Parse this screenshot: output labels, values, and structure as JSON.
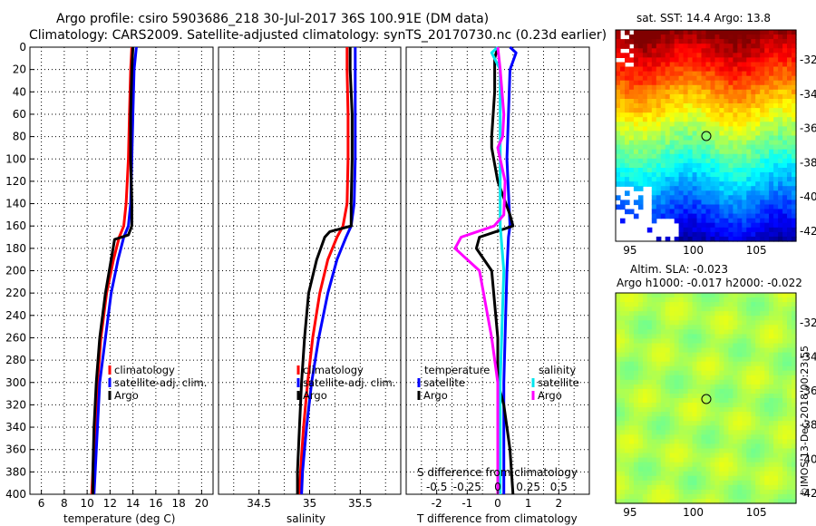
{
  "header": {
    "line1": "Argo profile: csiro 5903686_218 30-Jul-2017 36S 100.91E (DM data)",
    "line2": "Climatology: CARS2009. Satellite-adjusted climatology: synTS_20170730.nc (0.23d earlier)"
  },
  "colors": {
    "climatology": "#ff0000",
    "satellite": "#0000ff",
    "argo": "#000000",
    "sat_salinity": "#00e5ee",
    "argo_salinity": "#ff00ff"
  },
  "chart_data": [
    {
      "type": "line",
      "id": "temperature",
      "xlabel": "temperature (deg C)",
      "ylabel": "depth",
      "xlim": [
        5,
        21
      ],
      "ylim": [
        400,
        0
      ],
      "xticks": [
        "6",
        "8",
        "10",
        "12",
        "14",
        "16",
        "18",
        "20"
      ],
      "yticks": [
        "0",
        "20",
        "40",
        "60",
        "80",
        "100",
        "120",
        "140",
        "160",
        "180",
        "200",
        "220",
        "240",
        "260",
        "280",
        "300",
        "320",
        "340",
        "360",
        "380",
        "400"
      ],
      "legend": [
        "climatology",
        "satellite-adj. clim.",
        "Argo"
      ],
      "series": [
        {
          "name": "climatology",
          "depth": [
            0,
            20,
            60,
            100,
            140,
            160,
            170,
            190,
            220,
            260,
            300,
            340,
            380,
            400
          ],
          "values": [
            13.9,
            13.8,
            13.7,
            13.6,
            13.4,
            13.2,
            12.8,
            12.3,
            11.7,
            11.2,
            10.9,
            10.7,
            10.5,
            10.4
          ]
        },
        {
          "name": "satellite-adj. clim.",
          "depth": [
            0,
            20,
            60,
            100,
            140,
            160,
            170,
            190,
            220,
            260,
            300,
            340,
            380,
            400
          ],
          "values": [
            14.3,
            14.1,
            14.0,
            13.9,
            13.8,
            13.6,
            13.2,
            12.7,
            12.1,
            11.6,
            11.1,
            10.9,
            10.7,
            10.6
          ]
        },
        {
          "name": "Argo",
          "depth": [
            0,
            20,
            60,
            100,
            140,
            160,
            168,
            172,
            190,
            220,
            260,
            300,
            340,
            380,
            400
          ],
          "values": [
            14.0,
            13.9,
            13.8,
            13.8,
            13.9,
            13.9,
            13.6,
            12.4,
            12.1,
            11.6,
            11.1,
            10.8,
            10.6,
            10.5,
            10.5
          ]
        }
      ]
    },
    {
      "type": "line",
      "id": "salinity",
      "xlabel": "salinity",
      "ylabel": "depth",
      "xlim": [
        34.1,
        35.9
      ],
      "ylim": [
        400,
        0
      ],
      "xticks": [
        "34.5",
        "35",
        "35.5"
      ],
      "legend": [
        "climatology",
        "satellite-adj. clim.",
        "Argo"
      ],
      "series": [
        {
          "name": "climatology",
          "depth": [
            0,
            20,
            60,
            100,
            140,
            160,
            170,
            190,
            220,
            260,
            300,
            340,
            380,
            400
          ],
          "values": [
            35.37,
            35.37,
            35.38,
            35.38,
            35.37,
            35.33,
            35.27,
            35.18,
            35.1,
            35.03,
            34.98,
            34.94,
            34.91,
            34.9
          ]
        },
        {
          "name": "satellite-adj. clim.",
          "depth": [
            0,
            20,
            60,
            100,
            140,
            160,
            170,
            190,
            220,
            260,
            300,
            340,
            380,
            400
          ],
          "values": [
            35.45,
            35.45,
            35.45,
            35.45,
            35.44,
            35.41,
            35.36,
            35.27,
            35.18,
            35.09,
            35.02,
            34.97,
            34.93,
            34.92
          ]
        },
        {
          "name": "Argo",
          "depth": [
            0,
            20,
            60,
            100,
            140,
            160,
            165,
            170,
            190,
            220,
            260,
            300,
            340,
            380,
            400
          ],
          "values": [
            35.4,
            35.4,
            35.42,
            35.42,
            35.41,
            35.41,
            35.2,
            35.15,
            35.07,
            34.99,
            34.95,
            34.92,
            34.9,
            34.88,
            34.88
          ]
        }
      ]
    },
    {
      "type": "line",
      "id": "difference",
      "xlabel": "T difference from climatology",
      "xlabel2": "S difference from climatology",
      "xlim": [
        -3,
        3
      ],
      "ylim": [
        400,
        0
      ],
      "xticks": [
        "-2",
        "-1",
        "0",
        "1",
        "2"
      ],
      "xticks2": [
        "-0.5",
        "-0.25",
        "0",
        "0.25",
        "0.5"
      ],
      "legend_temperature": {
        "title": "temperature",
        "items": [
          "satellite",
          "Argo"
        ]
      },
      "legend_salinity": {
        "title": "salinity",
        "items": [
          "satellite",
          "Argo"
        ]
      },
      "series": [
        {
          "name": "T satellite",
          "depth": [
            0,
            5,
            20,
            100,
            160,
            170,
            200,
            300,
            400
          ],
          "values": [
            0.4,
            0.6,
            0.4,
            0.3,
            0.4,
            0.35,
            0.3,
            0.2,
            0.2
          ]
        },
        {
          "name": "T Argo",
          "depth": [
            0,
            10,
            40,
            80,
            90,
            120,
            150,
            160,
            170,
            180,
            200,
            260,
            300,
            320,
            360,
            400
          ],
          "values": [
            0.0,
            -0.1,
            -0.1,
            -0.2,
            -0.2,
            0.0,
            0.4,
            0.5,
            -0.6,
            -0.7,
            -0.2,
            0.0,
            0.0,
            0.2,
            0.4,
            0.5
          ]
        },
        {
          "name": "S satellite",
          "depth": [
            0,
            5,
            20,
            80,
            160,
            200,
            300,
            400
          ],
          "values": [
            0.0,
            -0.05,
            0.02,
            0.02,
            0.02,
            0.05,
            0.02,
            0.02
          ]
        },
        {
          "name": "S Argo",
          "depth": [
            0,
            20,
            60,
            80,
            90,
            120,
            150,
            160,
            170,
            180,
            200,
            260,
            300,
            340,
            400
          ],
          "values": [
            0.0,
            0.02,
            0.05,
            0.04,
            0.0,
            0.06,
            0.05,
            -0.03,
            -0.3,
            -0.35,
            -0.15,
            -0.05,
            0.0,
            0.0,
            0.0
          ]
        }
      ]
    }
  ],
  "map_sst": {
    "title": "sat. SST: 14.4 Argo: 13.8",
    "xticks": [
      "95",
      "100",
      "105"
    ],
    "yticks": [
      "-32",
      "-34",
      "-36",
      "-38",
      "-40",
      "-42"
    ]
  },
  "map_sla": {
    "title1": "Altim. SLA: -0.023",
    "title2": "Argo h1000: -0.017 h2000: -0.022",
    "xticks": [
      "95",
      "100",
      "105"
    ],
    "yticks": [
      "-32",
      "-34",
      "-36",
      "-38",
      "-40",
      "-42"
    ]
  },
  "watermark": "©IMOS 13-Dec-2018 00:23:55"
}
